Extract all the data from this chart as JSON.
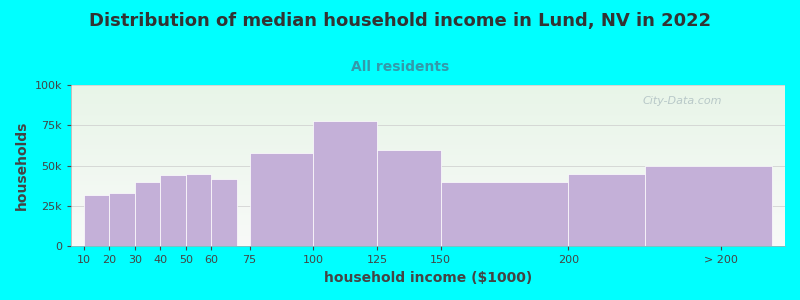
{
  "title": "Distribution of median household income in Lund, NV in 2022",
  "subtitle": "All residents",
  "xlabel": "household income ($1000)",
  "ylabel": "households",
  "background_color": "#00FFFF",
  "plot_bg_gradient_top": "#e8f5e8",
  "plot_bg_gradient_bottom": "#f8faf8",
  "bar_color": "#c4b0d8",
  "bar_edge_color": "#ffffff",
  "categories": [
    "10",
    "20",
    "30",
    "40",
    "50",
    "60",
    "75",
    "100",
    "125",
    "150",
    "200",
    "> 200"
  ],
  "values": [
    32000,
    33000,
    40000,
    44000,
    45000,
    42000,
    58000,
    78000,
    60000,
    40000,
    45000,
    50000
  ],
  "ylim": [
    0,
    100000
  ],
  "yticks": [
    0,
    25000,
    50000,
    75000,
    100000
  ],
  "ytick_labels": [
    "0",
    "25k",
    "50k",
    "75k",
    "100k"
  ],
  "title_fontsize": 13,
  "subtitle_fontsize": 10,
  "subtitle_color": "#3399aa",
  "axis_label_fontsize": 10,
  "tick_fontsize": 8,
  "watermark_text": "City-Data.com",
  "watermark_color": "#b8c8c8",
  "x_positions": [
    10,
    20,
    30,
    40,
    50,
    60,
    75,
    100,
    125,
    150,
    200,
    230
  ],
  "bar_widths": [
    10,
    10,
    10,
    10,
    10,
    10,
    25,
    25,
    25,
    50,
    30,
    50
  ],
  "xlim": [
    5,
    285
  ],
  "xtick_positions": [
    10,
    20,
    30,
    40,
    50,
    60,
    75,
    100,
    125,
    150,
    200,
    260
  ],
  "grid_color": "#cccccc",
  "title_color": "#333333"
}
